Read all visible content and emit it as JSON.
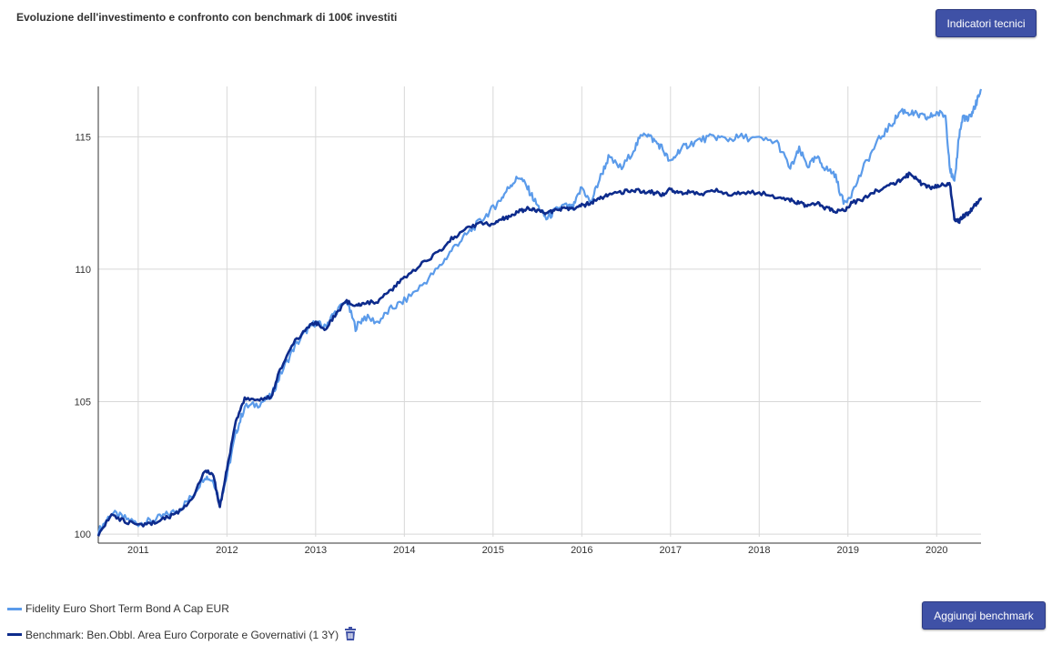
{
  "title": "Evoluzione dell'investimento e confronto con benchmark di 100€ investiti",
  "buttons": {
    "technical_indicators": "Indicatori tecnici",
    "add_benchmark": "Aggiungi benchmark"
  },
  "legend": {
    "fund": "Fidelity Euro Short Term Bond A Cap EUR",
    "benchmark": "Benchmark: Ben.Obbl. Area Euro Corporate e Governativi (1 3Y)",
    "delete_icon": "trash-icon"
  },
  "colors": {
    "fund": "#5b9bea",
    "benchmark": "#0d2b8c",
    "button": "#3f51a6",
    "grid": "#d8d8d8"
  },
  "chart_data": {
    "type": "line",
    "xlim": [
      2010.55,
      2020.5
    ],
    "ylim": [
      99.9,
      116.9
    ],
    "x_ticks": [
      2011,
      2012,
      2013,
      2014,
      2015,
      2016,
      2017,
      2018,
      2019,
      2020
    ],
    "x_tick_labels": [
      "2011",
      "2012",
      "2013",
      "2014",
      "2015",
      "2016",
      "2017",
      "2018",
      "2019",
      "2020"
    ],
    "y_ticks": [
      100,
      105,
      110,
      115
    ],
    "y_tick_labels": [
      "100",
      "105",
      "110",
      "115"
    ],
    "grid": true,
    "legend_position": "bottom-left",
    "series": [
      {
        "name": "Fidelity Euro Short Term Bond A Cap EUR",
        "x": [
          2010.55,
          2010.7,
          2010.85,
          2011.0,
          2011.15,
          2011.3,
          2011.45,
          2011.6,
          2011.75,
          2011.85,
          2011.92,
          2012.0,
          2012.1,
          2012.2,
          2012.35,
          2012.5,
          2012.6,
          2012.75,
          2012.9,
          2013.0,
          2013.1,
          2013.2,
          2013.35,
          2013.45,
          2013.55,
          2013.7,
          2013.85,
          2014.0,
          2014.2,
          2014.4,
          2014.55,
          2014.7,
          2014.85,
          2015.0,
          2015.1,
          2015.2,
          2015.3,
          2015.4,
          2015.5,
          2015.6,
          2015.7,
          2015.8,
          2015.9,
          2016.0,
          2016.1,
          2016.2,
          2016.3,
          2016.45,
          2016.6,
          2016.7,
          2016.8,
          2016.9,
          2017.0,
          2017.1,
          2017.2,
          2017.35,
          2017.5,
          2017.65,
          2017.8,
          2018.0,
          2018.2,
          2018.35,
          2018.45,
          2018.55,
          2018.65,
          2018.75,
          2018.85,
          2018.95,
          2019.05,
          2019.2,
          2019.35,
          2019.5,
          2019.6,
          2019.7,
          2019.8,
          2019.9,
          2020.0,
          2020.1,
          2020.15,
          2020.2,
          2020.25,
          2020.3,
          2020.35,
          2020.4,
          2020.45,
          2020.5
        ],
        "values": [
          100.1,
          100.8,
          100.6,
          100.4,
          100.5,
          100.7,
          100.9,
          101.4,
          102.2,
          102.0,
          101.2,
          102.2,
          103.8,
          104.8,
          104.9,
          105.2,
          106.0,
          107.0,
          107.7,
          108.0,
          107.8,
          108.3,
          108.8,
          107.8,
          108.2,
          108.0,
          108.5,
          108.8,
          109.4,
          110.1,
          110.8,
          111.3,
          111.8,
          112.3,
          112.7,
          113.2,
          113.5,
          113.0,
          112.4,
          111.9,
          112.2,
          112.4,
          112.3,
          113.1,
          112.5,
          113.4,
          114.2,
          113.8,
          114.6,
          115.2,
          114.9,
          114.6,
          114.0,
          114.5,
          114.7,
          114.9,
          115.0,
          114.9,
          115.0,
          114.9,
          114.8,
          113.8,
          114.5,
          113.9,
          114.2,
          113.8,
          113.6,
          112.5,
          112.9,
          114.0,
          114.9,
          115.5,
          116.0,
          115.9,
          115.8,
          115.7,
          115.9,
          115.8,
          113.8,
          113.2,
          115.0,
          115.8,
          115.6,
          115.9,
          116.3,
          116.8
        ]
      },
      {
        "name": "Benchmark: Ben.Obbl. Area Euro Corporate e Governativi (1 3Y)",
        "x": [
          2010.55,
          2010.7,
          2010.85,
          2011.0,
          2011.15,
          2011.3,
          2011.45,
          2011.6,
          2011.75,
          2011.85,
          2011.92,
          2012.0,
          2012.1,
          2012.2,
          2012.35,
          2012.5,
          2012.6,
          2012.75,
          2012.9,
          2013.0,
          2013.1,
          2013.2,
          2013.35,
          2013.45,
          2013.55,
          2013.7,
          2013.85,
          2014.0,
          2014.2,
          2014.4,
          2014.55,
          2014.7,
          2014.85,
          2015.0,
          2015.1,
          2015.2,
          2015.3,
          2015.4,
          2015.5,
          2015.6,
          2015.7,
          2015.8,
          2015.9,
          2016.0,
          2016.1,
          2016.2,
          2016.3,
          2016.45,
          2016.6,
          2016.7,
          2016.8,
          2016.9,
          2017.0,
          2017.1,
          2017.2,
          2017.35,
          2017.5,
          2017.65,
          2017.8,
          2018.0,
          2018.2,
          2018.35,
          2018.45,
          2018.55,
          2018.65,
          2018.75,
          2018.85,
          2018.95,
          2019.05,
          2019.2,
          2019.35,
          2019.5,
          2019.6,
          2019.7,
          2019.8,
          2019.9,
          2020.0,
          2020.1,
          2020.15,
          2020.2,
          2020.25,
          2020.3,
          2020.35,
          2020.4,
          2020.45,
          2020.5
        ],
        "values": [
          100.0,
          100.7,
          100.5,
          100.3,
          100.4,
          100.6,
          100.8,
          101.3,
          102.4,
          102.2,
          101.0,
          102.5,
          104.2,
          105.1,
          105.0,
          105.2,
          106.2,
          107.2,
          107.8,
          108.0,
          107.7,
          108.2,
          108.8,
          108.6,
          108.7,
          108.8,
          109.2,
          109.7,
          110.2,
          110.7,
          111.2,
          111.5,
          111.7,
          111.7,
          111.9,
          112.0,
          112.2,
          112.3,
          112.2,
          112.1,
          112.2,
          112.3,
          112.3,
          112.4,
          112.5,
          112.7,
          112.8,
          112.9,
          113.0,
          112.9,
          112.9,
          112.8,
          113.0,
          112.9,
          112.9,
          112.8,
          113.0,
          112.8,
          112.9,
          112.9,
          112.7,
          112.6,
          112.5,
          112.4,
          112.5,
          112.3,
          112.2,
          112.2,
          112.5,
          112.7,
          113.0,
          113.2,
          113.4,
          113.6,
          113.3,
          113.1,
          113.1,
          113.2,
          113.2,
          111.9,
          111.8,
          112.0,
          112.1,
          112.3,
          112.5,
          112.7
        ]
      }
    ]
  }
}
